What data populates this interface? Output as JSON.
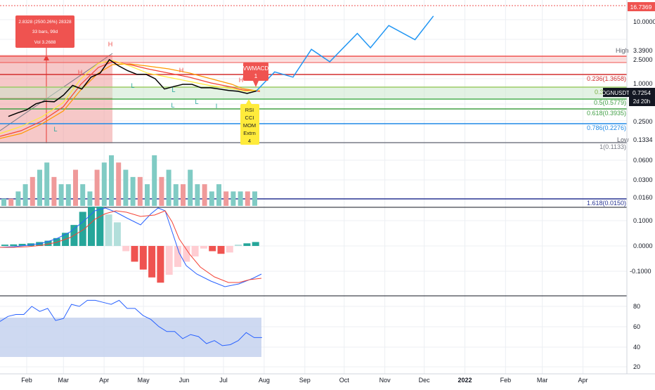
{
  "symbol_label": "OGNUSDT",
  "symbol_price": "0.7254",
  "symbol_countdown": "2d 20h",
  "top_price_tag": "16.7369",
  "measure_box": {
    "line1": "2.8328 (2500.26%) 28328",
    "line2": "33 bars, 99d",
    "line3": "Vol 3.2688"
  },
  "vwmacd_label": {
    "line1": "VWMACD",
    "line2": "1"
  },
  "divergence_label": {
    "lines": [
      "RSI",
      "CCI",
      "MOM",
      "Extrn",
      "4"
    ]
  },
  "swing_labels": [
    "H",
    "H",
    "H",
    "H",
    "L",
    "L",
    "L",
    "L",
    "L",
    "I"
  ],
  "fib_labels": {
    "f0236": "0.236(1.3658)",
    "f05": "0.5(0.5779)",
    "f0618": "0.618(0.3935)",
    "f0786": "0.786(0.2276)",
    "f1": "1(0.1133)",
    "f1618": "1.618(0.0150)",
    "partial": "0.3"
  },
  "high_label": "High",
  "high_value": "3.3900",
  "low_label": "Low",
  "low_value": "0.1334",
  "colors": {
    "up": "#26a69a",
    "down": "#ef5350",
    "up_light": "#b2dfdb",
    "down_light": "#ffcdd2",
    "projection": "#2196f3",
    "fib_red": "#d32f2f",
    "fib_green": "#4caf50",
    "fib_blue": "#1e88e5",
    "fib_gray": "#787b86",
    "fib_navy": "#283593",
    "rsi_band": "#c5d2ee",
    "rsi_line": "#2962ff"
  },
  "chart_data": [
    {
      "type": "line",
      "title": "",
      "scale": "log",
      "x_ticks": [
        "Feb",
        "Mar",
        "Apr",
        "May",
        "Jun",
        "Jul",
        "Aug",
        "Sep",
        "Oct",
        "Nov",
        "Dec",
        "2022",
        "Feb",
        "Mar",
        "Apr"
      ],
      "y_ticks": [
        "10.0000",
        "2.5000",
        "1.0000",
        "0.2500"
      ],
      "series": [
        {
          "values": [
            {
              "x": "2021-01-18",
              "y": 0.22
            },
            {
              "x": "2021-01-25",
              "y": 0.26
            },
            {
              "x": "2021-02-01",
              "y": 0.3
            },
            {
              "x": "2021-02-08",
              "y": 0.4
            },
            {
              "x": "2021-02-15",
              "y": 0.45
            },
            {
              "x": "2021-02-22",
              "y": 0.44
            },
            {
              "x": "2021-03-01",
              "y": 0.6
            },
            {
              "x": "2021-03-08",
              "y": 0.95
            },
            {
              "x": "2021-03-15",
              "y": 0.8
            },
            {
              "x": "2021-03-22",
              "y": 1.4
            },
            {
              "x": "2021-03-29",
              "y": 1.7
            },
            {
              "x": "2021-04-05",
              "y": 3.2
            },
            {
              "x": "2021-04-12",
              "y": 2.4
            },
            {
              "x": "2021-04-19",
              "y": 1.9
            },
            {
              "x": "2021-04-26",
              "y": 1.6
            },
            {
              "x": "2021-05-03",
              "y": 1.6
            },
            {
              "x": "2021-05-10",
              "y": 1.3
            },
            {
              "x": "2021-05-17",
              "y": 0.8
            },
            {
              "x": "2021-05-24",
              "y": 0.9
            },
            {
              "x": "2021-05-31",
              "y": 1.0
            },
            {
              "x": "2021-06-07",
              "y": 1.0
            },
            {
              "x": "2021-06-14",
              "y": 0.85
            },
            {
              "x": "2021-06-21",
              "y": 0.85
            },
            {
              "x": "2021-06-28",
              "y": 0.8
            },
            {
              "x": "2021-07-05",
              "y": 0.75
            },
            {
              "x": "2021-07-12",
              "y": 0.72
            },
            {
              "x": "2021-07-19",
              "y": 0.65
            },
            {
              "x": "2021-07-26",
              "y": 0.73
            }
          ]
        },
        {
          "values": [
            {
              "x": "2021-07-26",
              "y": 0.73
            },
            {
              "x": "2021-08-09",
              "y": 1.8
            },
            {
              "x": "2021-08-23",
              "y": 1.4
            },
            {
              "x": "2021-09-06",
              "y": 5.2
            },
            {
              "x": "2021-09-20",
              "y": 2.9
            },
            {
              "x": "2021-10-11",
              "y": 11.0
            },
            {
              "x": "2021-10-21",
              "y": 5.6
            },
            {
              "x": "2021-11-04",
              "y": 16.0
            },
            {
              "x": "2021-11-24",
              "y": 8.2
            },
            {
              "x": "2021-12-08",
              "y": 25.0
            }
          ]
        }
      ]
    },
    {
      "type": "bar",
      "title": "",
      "y_ticks": [
        "0.0600",
        "0.0300",
        "0.0160"
      ],
      "values": [
        1,
        1,
        2,
        3,
        4,
        5,
        6,
        4,
        3,
        3,
        5,
        3,
        2,
        5,
        6,
        7,
        6,
        5,
        4,
        4,
        3,
        7,
        4,
        5,
        3,
        3,
        5,
        3,
        3,
        2,
        3,
        2,
        2,
        2,
        2,
        2
      ]
    },
    {
      "type": "bar",
      "title": "",
      "y_ticks": [
        "0.1000",
        "0.0000",
        "-0.1000"
      ],
      "values": [
        0.005,
        0.006,
        0.008,
        0.01,
        0.015,
        0.02,
        0.03,
        0.05,
        0.08,
        0.13,
        0.15,
        0.15,
        0.12,
        0.09,
        -0.02,
        -0.06,
        -0.09,
        -0.12,
        -0.14,
        -0.11,
        -0.08,
        -0.06,
        -0.04,
        -0.01,
        -0.02,
        -0.03,
        -0.025,
        0.005,
        0.01,
        0.015
      ]
    },
    {
      "type": "line",
      "title": "",
      "y_ticks": [
        "80",
        "60",
        "40",
        "20"
      ],
      "ylim": [
        20,
        90
      ],
      "values": [
        65,
        70,
        72,
        72,
        80,
        75,
        78,
        66,
        68,
        82,
        80,
        86,
        86,
        84,
        82,
        86,
        78,
        78,
        71,
        67,
        60,
        55,
        55,
        48,
        52,
        50,
        43,
        46,
        41,
        42,
        46,
        54,
        49,
        49
      ]
    }
  ]
}
